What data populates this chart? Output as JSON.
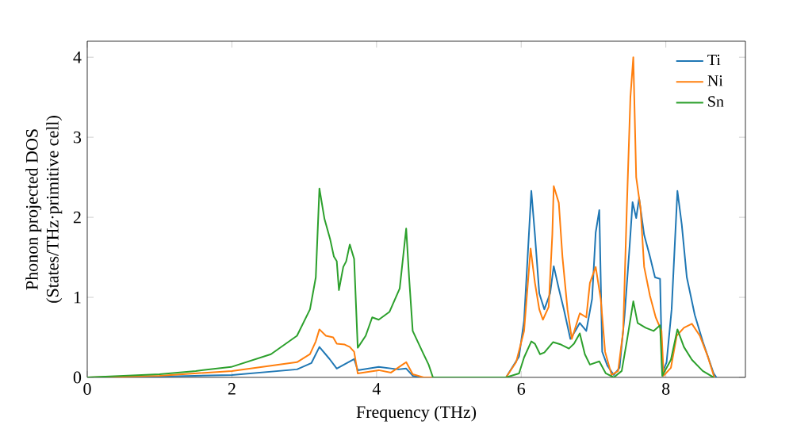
{
  "chart_data": {
    "type": "line",
    "xlabel": "Frequency (THz)",
    "ylabel": "Phonon projected DOS\n(States/THz·primitive cell)",
    "xlim": [
      0,
      9.1
    ],
    "ylim": [
      0,
      4.2
    ],
    "xticks": [
      0,
      2,
      4,
      6,
      8
    ],
    "yticks": [
      0,
      1,
      2,
      3,
      4
    ],
    "legend": "top right",
    "grid": false,
    "series": [
      {
        "name": "Ti",
        "color": "#1f77b4",
        "x": [
          0,
          1,
          2,
          2.9,
          3.1,
          3.21,
          3.35,
          3.45,
          3.69,
          3.74,
          4.03,
          4.3,
          4.41,
          4.5,
          4.6,
          5.79,
          5.97,
          6.04,
          6.14,
          6.19,
          6.25,
          6.32,
          6.4,
          6.45,
          6.52,
          6.59,
          6.68,
          6.76,
          6.81,
          6.9,
          6.98,
          7.03,
          7.08,
          7.12,
          7.19,
          7.28,
          7.36,
          7.43,
          7.5,
          7.54,
          7.59,
          7.63,
          7.7,
          7.78,
          7.85,
          7.92,
          7.95,
          8.01,
          8.08,
          8.16,
          8.22,
          8.29,
          8.4,
          8.51,
          8.66,
          8.7
        ],
        "values": [
          0,
          0.01,
          0.03,
          0.1,
          0.18,
          0.38,
          0.23,
          0.11,
          0.23,
          0.09,
          0.13,
          0.1,
          0.11,
          0.02,
          0,
          0,
          0.26,
          0.71,
          2.33,
          1.78,
          1.05,
          0.85,
          1.05,
          1.39,
          1.11,
          0.85,
          0.48,
          0.6,
          0.68,
          0.58,
          0.98,
          1.81,
          2.09,
          0.32,
          0.15,
          0.03,
          0.12,
          0.78,
          1.65,
          2.19,
          1.99,
          2.24,
          1.78,
          1.51,
          1.25,
          1.23,
          0.05,
          0.19,
          0.85,
          2.33,
          1.91,
          1.25,
          0.78,
          0.45,
          0.05,
          0
        ]
      },
      {
        "name": "Ni",
        "color": "#ff7f0e",
        "x": [
          0,
          1,
          2,
          2.9,
          3.08,
          3.16,
          3.21,
          3.3,
          3.4,
          3.45,
          3.56,
          3.63,
          3.69,
          3.74,
          4.03,
          4.2,
          4.41,
          4.5,
          4.65,
          5.79,
          5.93,
          6.04,
          6.13,
          6.19,
          6.25,
          6.3,
          6.38,
          6.43,
          6.45,
          6.52,
          6.57,
          6.64,
          6.7,
          6.81,
          6.9,
          6.95,
          7.03,
          7.1,
          7.16,
          7.25,
          7.34,
          7.41,
          7.46,
          7.51,
          7.55,
          7.59,
          7.65,
          7.7,
          7.78,
          7.86,
          7.94,
          7.97,
          8.07,
          8.15,
          8.25,
          8.36,
          8.47,
          8.58,
          8.67
        ],
        "values": [
          0,
          0.02,
          0.08,
          0.19,
          0.29,
          0.45,
          0.6,
          0.52,
          0.5,
          0.42,
          0.41,
          0.38,
          0.32,
          0.05,
          0.09,
          0.06,
          0.19,
          0.04,
          0,
          0,
          0.19,
          0.58,
          1.61,
          1.18,
          0.85,
          0.72,
          0.88,
          1.78,
          2.39,
          2.18,
          1.51,
          0.85,
          0.48,
          0.8,
          0.75,
          1.18,
          1.38,
          0.98,
          0.32,
          0.03,
          0.08,
          0.58,
          2.11,
          3.5,
          4.0,
          2.5,
          2.11,
          1.38,
          1.02,
          0.75,
          0.58,
          0.02,
          0.12,
          0.52,
          0.62,
          0.67,
          0.52,
          0.26,
          0
        ]
      },
      {
        "name": "Sn",
        "color": "#2ca02c",
        "x": [
          0,
          1,
          1.5,
          1.99,
          2.54,
          2.9,
          3.08,
          3.16,
          3.21,
          3.28,
          3.36,
          3.41,
          3.45,
          3.48,
          3.54,
          3.58,
          3.63,
          3.69,
          3.74,
          3.85,
          3.94,
          4.03,
          4.18,
          4.32,
          4.41,
          4.45,
          4.5,
          4.65,
          4.72,
          4.78,
          5.79,
          5.97,
          6.04,
          6.14,
          6.19,
          6.26,
          6.32,
          6.44,
          6.55,
          6.66,
          6.73,
          6.81,
          6.88,
          6.95,
          7.08,
          7.17,
          7.28,
          7.39,
          7.46,
          7.55,
          7.61,
          7.72,
          7.83,
          7.92,
          7.95,
          8.07,
          8.16,
          8.25,
          8.36,
          8.51,
          8.66
        ],
        "values": [
          0,
          0.04,
          0.08,
          0.13,
          0.29,
          0.52,
          0.85,
          1.25,
          2.36,
          1.98,
          1.72,
          1.51,
          1.45,
          1.09,
          1.38,
          1.45,
          1.66,
          1.48,
          0.37,
          0.52,
          0.75,
          0.72,
          0.82,
          1.11,
          1.86,
          1.25,
          0.58,
          0.29,
          0.16,
          0,
          0,
          0.05,
          0.25,
          0.45,
          0.42,
          0.29,
          0.31,
          0.44,
          0.41,
          0.36,
          0.42,
          0.55,
          0.29,
          0.16,
          0.2,
          0.05,
          0,
          0.08,
          0.45,
          0.95,
          0.68,
          0.62,
          0.58,
          0.65,
          0.02,
          0.22,
          0.6,
          0.38,
          0.22,
          0.08,
          0
        ]
      }
    ]
  }
}
